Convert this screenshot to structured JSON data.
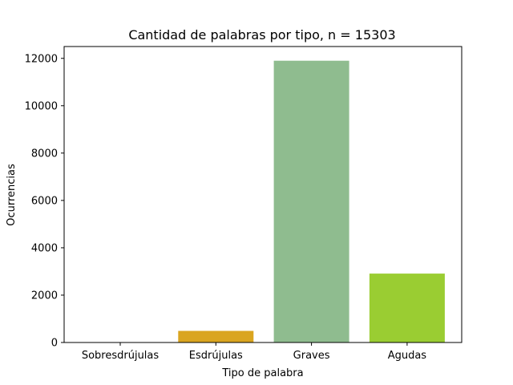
{
  "chart_data": {
    "type": "bar",
    "title": "Cantidad de palabras por tipo, n = 15303",
    "xlabel": "Tipo de palabra",
    "ylabel": "Ocurrencias",
    "categories": [
      "Sobresdrújulas",
      "Esdrújulas",
      "Graves",
      "Agudas"
    ],
    "values": [
      2,
      490,
      11900,
      2910
    ],
    "colors": [
      "#708090",
      "#daa520",
      "#8fbc8f",
      "#9acd32"
    ],
    "ylim": [
      0,
      12500
    ],
    "yticks": [
      0,
      2000,
      4000,
      6000,
      8000,
      10000,
      12000
    ],
    "grid": false,
    "legend": "none"
  }
}
